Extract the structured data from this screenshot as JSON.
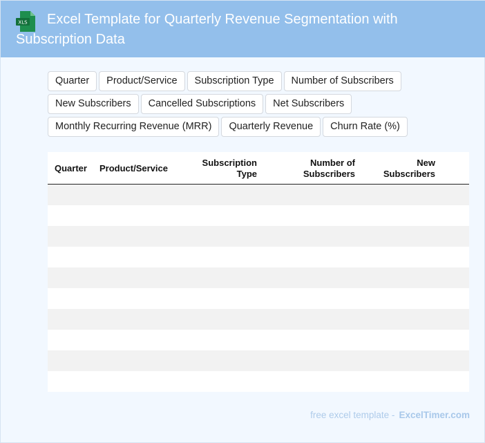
{
  "header": {
    "title": "Excel Template for Quarterly Revenue Segmentation with Subscription Data",
    "icon_label": "XLS",
    "background": "#93bfeb"
  },
  "chips": {
    "rows": [
      [
        "Quarter",
        "Product/Service",
        "Subscription Type",
        "Number of Subscribers"
      ],
      [
        "New Subscribers",
        "Cancelled Subscriptions",
        "Net Subscribers"
      ],
      [
        "Monthly Recurring Revenue (MRR)",
        "Quarterly Revenue",
        "Churn Rate (%)"
      ]
    ]
  },
  "table": {
    "headers": {
      "quarter": "Quarter",
      "product": "Product/Service",
      "sub_type_1": "Subscription",
      "sub_type_2": "Type",
      "num_subs_1": "Number of",
      "num_subs_2": "Subscribers",
      "new_subs_1": "New",
      "new_subs_2": "Subscribers"
    },
    "rows": [
      [],
      [],
      [],
      [],
      [],
      [],
      [],
      [],
      [],
      []
    ]
  },
  "footer": {
    "text": "free excel template -",
    "brand": "ExcelTimer.com"
  }
}
